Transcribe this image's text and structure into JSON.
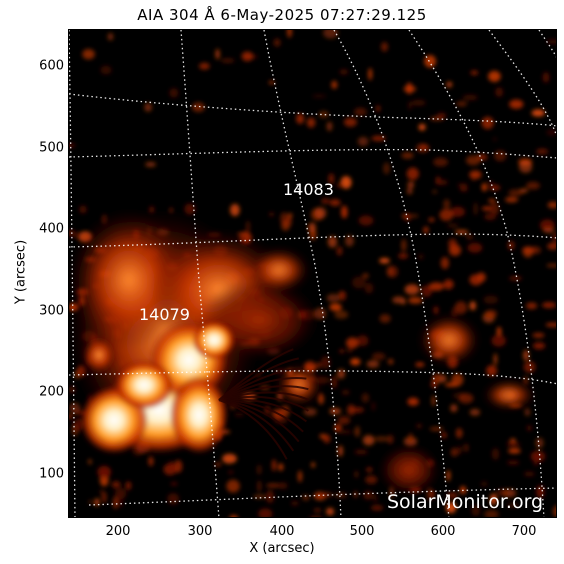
{
  "title": "AIA 304 Å  6-May-2025 07:27:29.125",
  "xlabel": "X (arcsec)",
  "ylabel": "Y (arcsec)",
  "x_ticks": [
    "200",
    "300",
    "400",
    "500",
    "600",
    "700"
  ],
  "y_ticks": [
    "100",
    "200",
    "300",
    "400",
    "500",
    "600"
  ],
  "regions": [
    {
      "label": "14083"
    },
    {
      "label": "14079"
    }
  ],
  "watermark": "SolarMonitor.org",
  "colors": {
    "background": "#000000",
    "emission": "#ff5a00",
    "grid": "#ffffff"
  }
}
